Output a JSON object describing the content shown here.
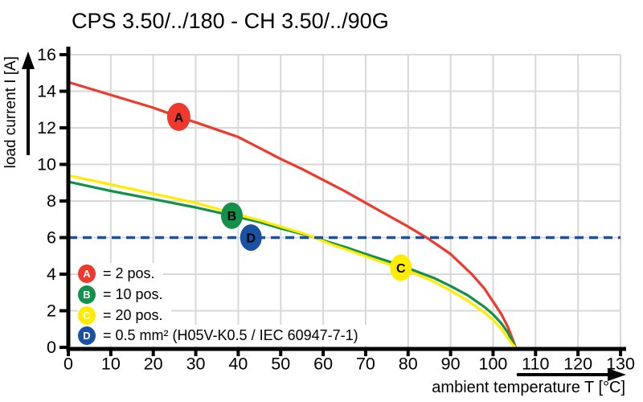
{
  "title": "CPS 3.50/../180 - CH 3.50/../90G",
  "axes": {
    "x_label": "ambient temperature T [°C]",
    "y_label": "load current I [A]"
  },
  "legend": {
    "items": [
      {
        "key": "A",
        "label": "= 2 pos.",
        "color": "#ee392c"
      },
      {
        "key": "B",
        "label": "= 10 pos.",
        "color": "#13914a"
      },
      {
        "key": "C",
        "label": "= 20 pos.",
        "color": "#ffec00"
      },
      {
        "key": "D",
        "label": "= 0.5 mm² (H05V-K0.5 / IEC 60947-7-1)",
        "color": "#1a51a2"
      }
    ]
  },
  "chart_data": {
    "type": "line",
    "title": "CPS 3.50/../180 - CH 3.50/../90G",
    "xlabel": "ambient temperature T [°C]",
    "ylabel": "load current I [A]",
    "xlim": [
      0,
      130
    ],
    "ylim": [
      0,
      16
    ],
    "x_ticks": [
      0,
      10,
      20,
      30,
      40,
      50,
      60,
      70,
      80,
      90,
      100,
      110,
      120,
      130
    ],
    "y_ticks": [
      0,
      2,
      4,
      6,
      8,
      10,
      12,
      14,
      16
    ],
    "grid": true,
    "grid_color": "#d8d8d8",
    "background": "#ffffff",
    "series": [
      {
        "name": "A",
        "legend": "2 pos.",
        "color": "#ee392c",
        "line": "solid",
        "marker": {
          "letter": "A",
          "x": 26,
          "y": 12.6
        },
        "points": [
          [
            0,
            14.5
          ],
          [
            5,
            14.15
          ],
          [
            10,
            13.8
          ],
          [
            15,
            13.45
          ],
          [
            20,
            13.1
          ],
          [
            26,
            12.6
          ],
          [
            30,
            12.3
          ],
          [
            35,
            11.9
          ],
          [
            40,
            11.5
          ],
          [
            45,
            10.9
          ],
          [
            50,
            10.3
          ],
          [
            55,
            9.75
          ],
          [
            60,
            9.15
          ],
          [
            65,
            8.55
          ],
          [
            70,
            7.9
          ],
          [
            75,
            7.25
          ],
          [
            80,
            6.6
          ],
          [
            85,
            5.9
          ],
          [
            90,
            5.1
          ],
          [
            95,
            4.0
          ],
          [
            98,
            3.2
          ],
          [
            100,
            2.5
          ],
          [
            102,
            1.8
          ],
          [
            103.5,
            1.1
          ],
          [
            104.6,
            0.45
          ],
          [
            105.3,
            0
          ]
        ]
      },
      {
        "name": "B",
        "legend": "10 pos.",
        "color": "#13914a",
        "line": "solid",
        "marker": {
          "letter": "B",
          "x": 38.5,
          "y": 7.2
        },
        "points": [
          [
            0,
            9.05
          ],
          [
            10,
            8.55
          ],
          [
            20,
            8.1
          ],
          [
            30,
            7.65
          ],
          [
            38.5,
            7.2
          ],
          [
            45,
            6.85
          ],
          [
            50,
            6.5
          ],
          [
            55,
            6.2
          ],
          [
            58,
            6.0
          ],
          [
            62,
            5.7
          ],
          [
            66,
            5.42
          ],
          [
            70,
            5.1
          ],
          [
            74,
            4.8
          ],
          [
            78,
            4.5
          ],
          [
            82,
            4.15
          ],
          [
            86,
            3.8
          ],
          [
            90,
            3.35
          ],
          [
            94,
            2.85
          ],
          [
            98,
            2.2
          ],
          [
            100,
            1.8
          ],
          [
            102,
            1.3
          ],
          [
            103.5,
            0.8
          ],
          [
            104.6,
            0.3
          ],
          [
            105.3,
            0
          ]
        ]
      },
      {
        "name": "C",
        "legend": "20 pos.",
        "color": "#ffec00",
        "line": "solid",
        "marker": {
          "letter": "C",
          "x": 78.3,
          "y": 4.35
        },
        "points": [
          [
            0,
            9.4
          ],
          [
            10,
            8.9
          ],
          [
            20,
            8.4
          ],
          [
            30,
            7.9
          ],
          [
            40,
            7.25
          ],
          [
            45,
            6.95
          ],
          [
            50,
            6.6
          ],
          [
            55,
            6.25
          ],
          [
            58,
            6.0
          ],
          [
            62,
            5.62
          ],
          [
            66,
            5.3
          ],
          [
            70,
            4.98
          ],
          [
            74,
            4.65
          ],
          [
            78,
            4.35
          ],
          [
            82,
            4.0
          ],
          [
            86,
            3.6
          ],
          [
            90,
            3.1
          ],
          [
            94,
            2.55
          ],
          [
            98,
            1.9
          ],
          [
            100,
            1.5
          ],
          [
            102,
            1.0
          ],
          [
            103.5,
            0.5
          ],
          [
            104.6,
            0.15
          ],
          [
            105.3,
            0
          ]
        ]
      },
      {
        "name": "D",
        "legend": "0.5 mm² (H05V-K0.5 / IEC 60947-7-1)",
        "color": "#1a51a2",
        "line": "dashed",
        "marker": {
          "letter": "D",
          "x": 43,
          "y": 6
        },
        "points": [
          [
            0,
            6
          ],
          [
            130,
            6
          ]
        ]
      }
    ]
  }
}
